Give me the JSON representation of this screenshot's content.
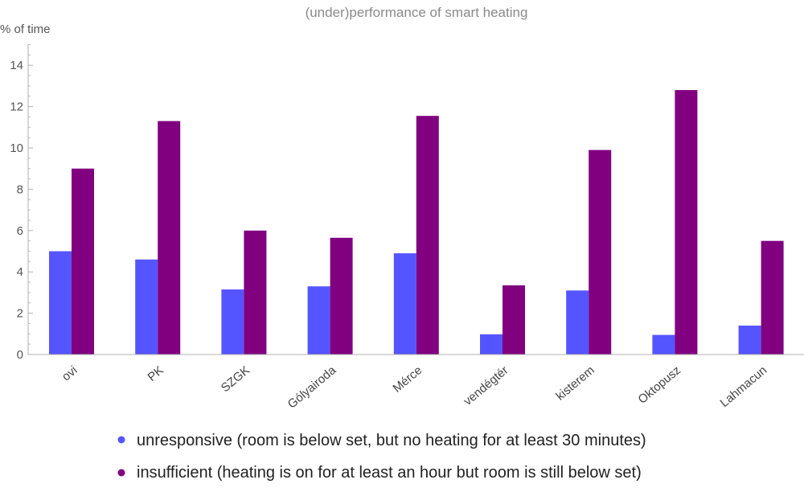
{
  "chart_data": {
    "type": "bar",
    "title": "(under)performance of smart heating",
    "ylabel": "% of time",
    "xlabel": "",
    "ylim": [
      0,
      15
    ],
    "yticks": [
      0,
      2,
      4,
      6,
      8,
      10,
      12,
      14
    ],
    "categories": [
      "ovi",
      "PK",
      "SZGK",
      "Gólyairoda",
      "Mérce",
      "vendégtér",
      "kisterem",
      "Oktopusz",
      "Lahmacun"
    ],
    "series": [
      {
        "name": "unresponsive (room is below set, but no heating for at least 30 minutes)",
        "color": "#5555ff",
        "values": [
          5.0,
          4.6,
          3.15,
          3.3,
          4.9,
          0.98,
          3.1,
          0.95,
          1.4
        ]
      },
      {
        "name": "insufficient (heating is on for at least an hour but room is still below set)",
        "color": "#800080",
        "values": [
          9.0,
          11.3,
          6.0,
          5.65,
          11.55,
          3.35,
          9.9,
          12.8,
          5.5
        ]
      }
    ],
    "grid": false,
    "legend_position": "bottom"
  }
}
